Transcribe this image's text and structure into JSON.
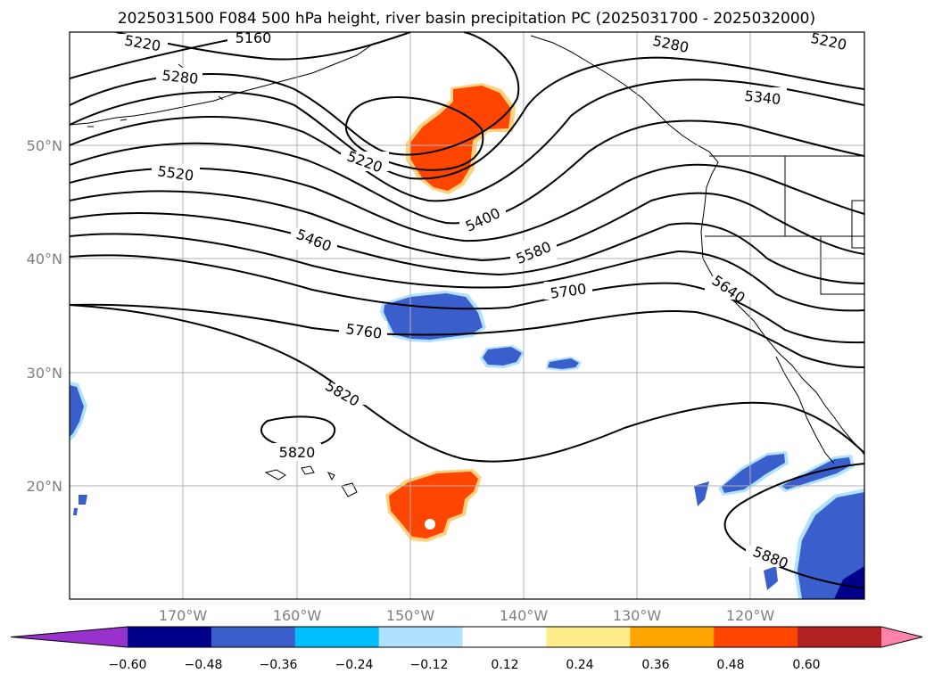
{
  "title": "2025031500 F084 500 hPa height, river basin precipitation PC (2025031700 - 2025032000)",
  "map": {
    "lat_labels": [
      "50°N",
      "40°N",
      "30°N",
      "20°N"
    ],
    "lon_labels": [
      "170°W",
      "160°W",
      "150°W",
      "140°W",
      "130°W",
      "120°W"
    ],
    "contour_labels": [
      "5160",
      "5220",
      "5220",
      "5220",
      "5280",
      "5280",
      "5340",
      "5400",
      "5460",
      "5520",
      "5580",
      "5640",
      "5700",
      "5760",
      "5820",
      "5820",
      "5880"
    ]
  },
  "colorbar": {
    "tick_labels": [
      "−0.60",
      "−0.48",
      "−0.36",
      "−0.24",
      "−0.12",
      "0.12",
      "0.24",
      "0.36",
      "0.48",
      "0.60"
    ],
    "colors": [
      "#9932cc",
      "#00008b",
      "#3a5fcd",
      "#00bfff",
      "#b0e2ff",
      "#ffffff",
      "#ffec8b",
      "#ffa500",
      "#ff4500",
      "#b22222",
      "#ff82ab"
    ]
  },
  "legend_colors": {
    "positive_fill": "#ff4500",
    "negative_fill": "#3a5fcd",
    "deep_negative": "#00008b"
  }
}
